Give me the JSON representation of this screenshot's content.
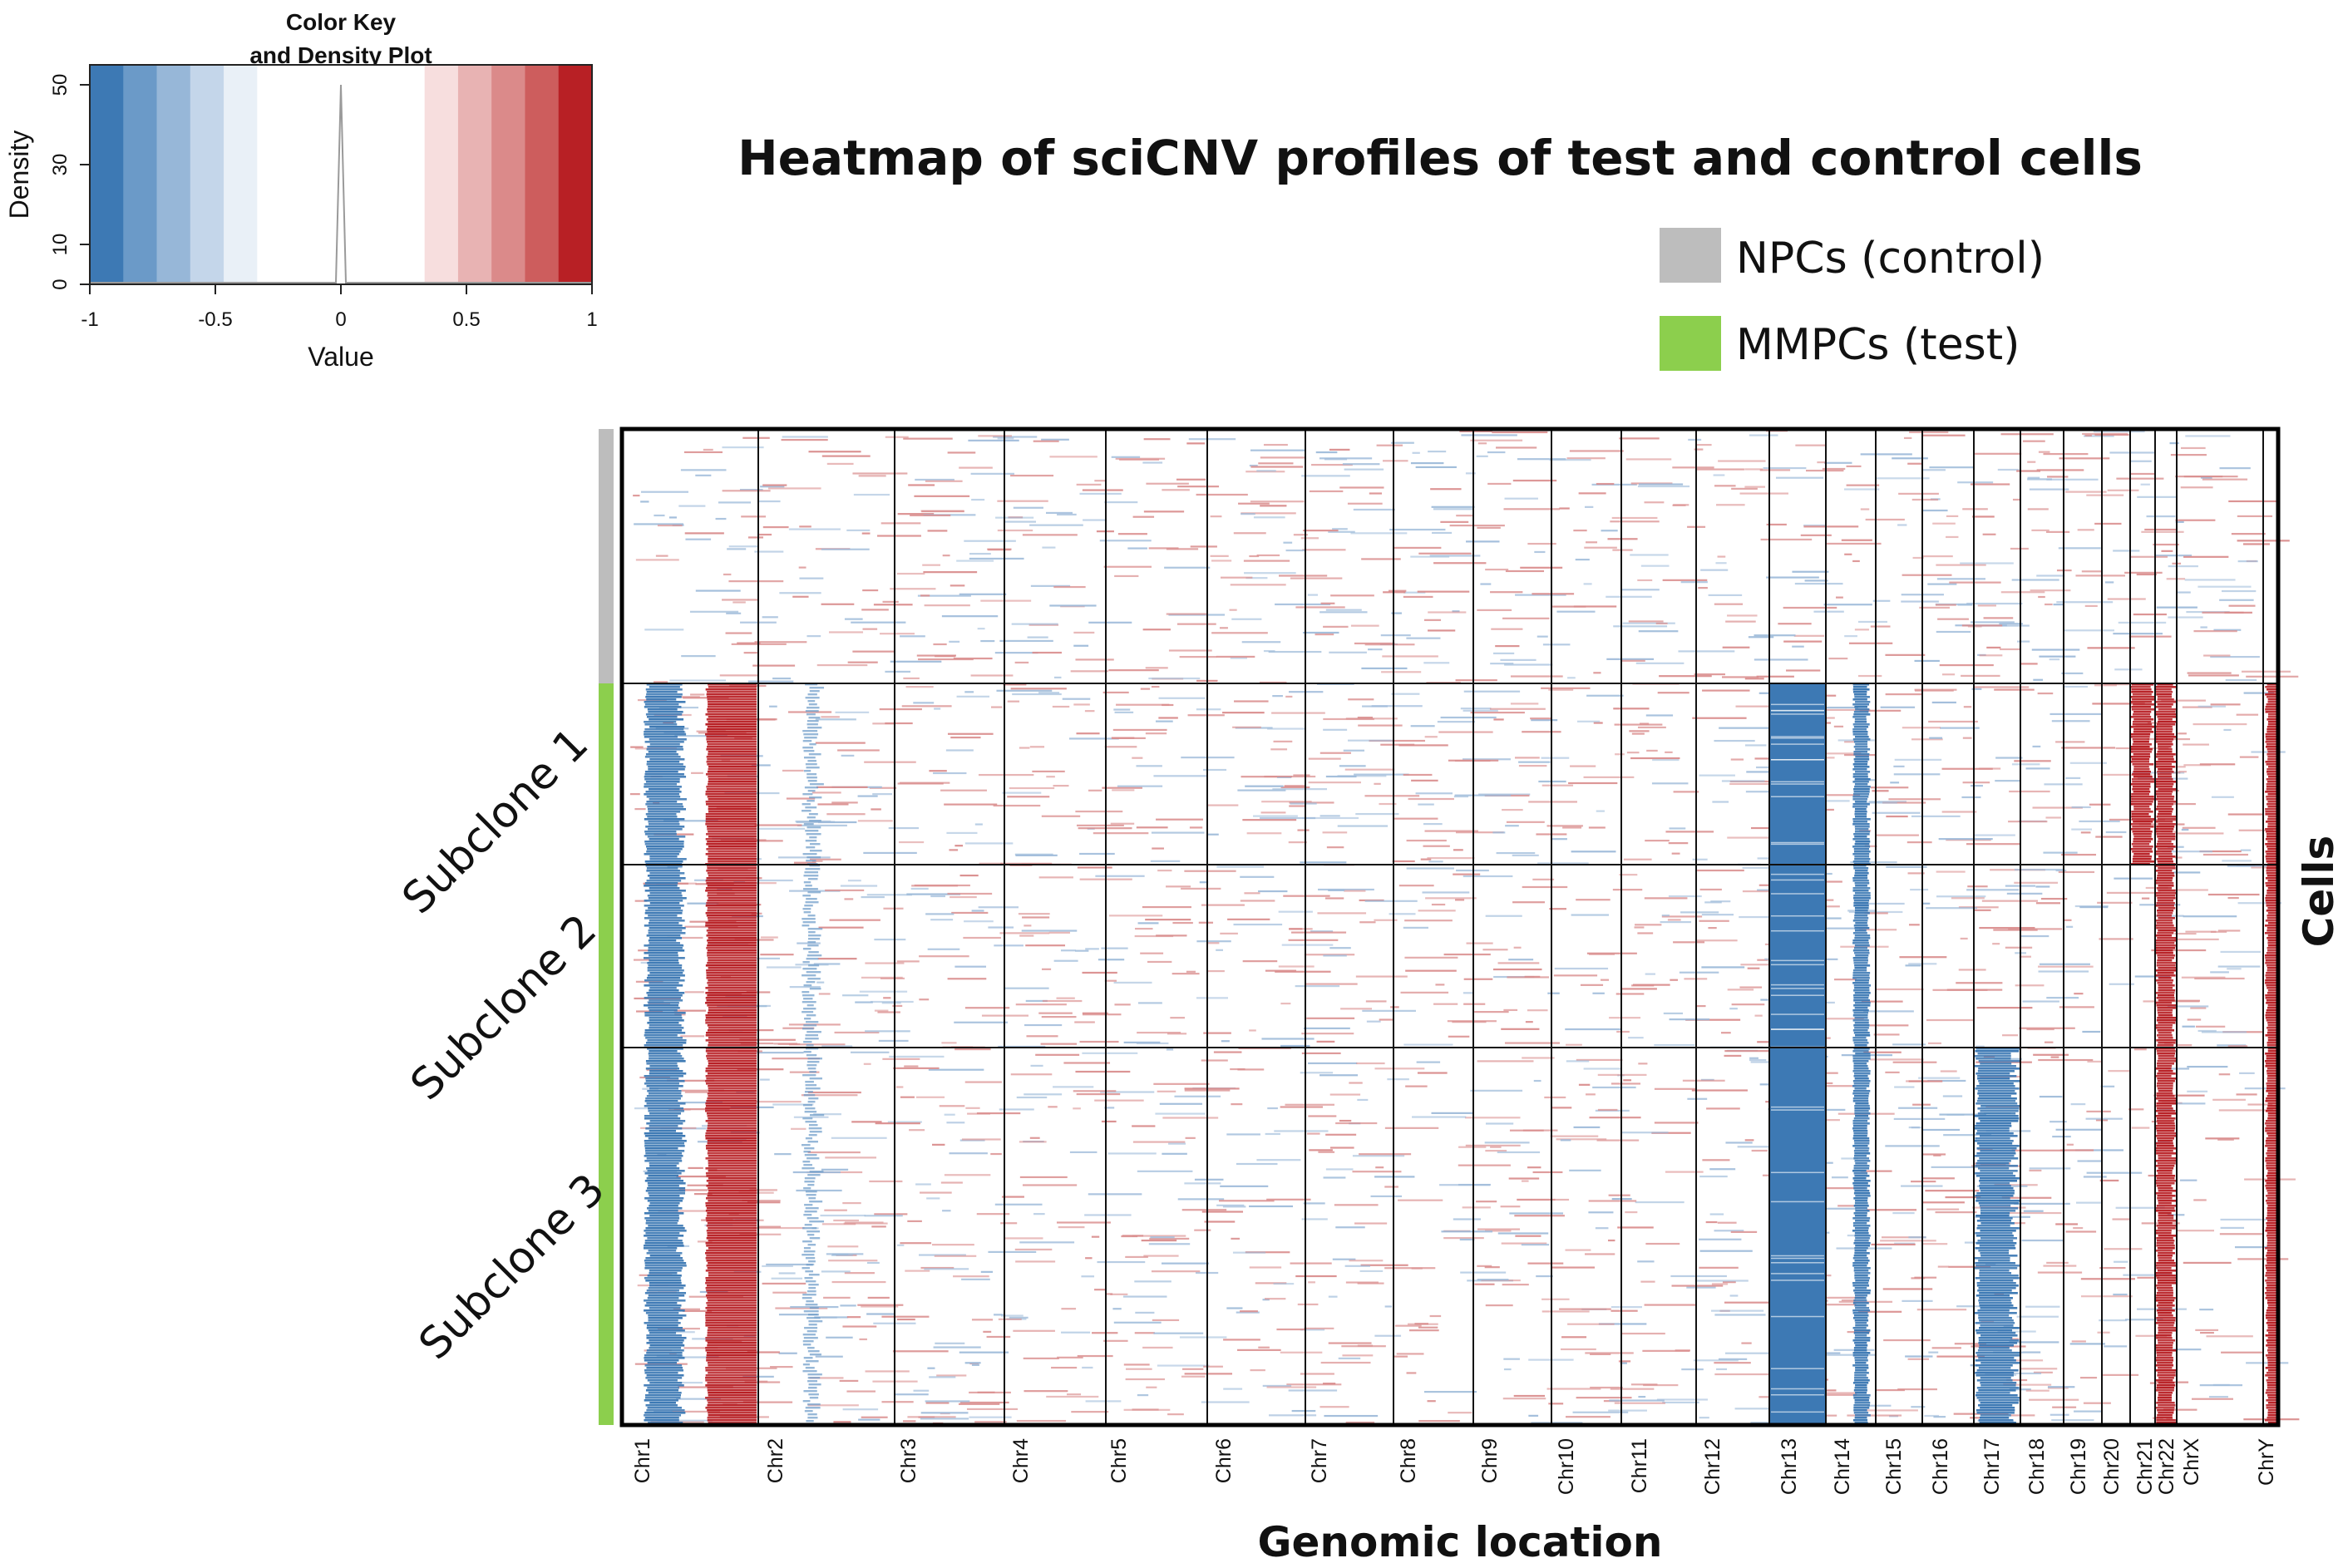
{
  "chart_data": {
    "type": "heatmap",
    "title": "Heatmap of sciCNV profiles of test and control cells",
    "xlabel": "Genomic location",
    "ylabel": "Cells",
    "color_key": {
      "title_line1": "Color Key",
      "title_line2": "and Density Plot",
      "xlabel": "Value",
      "ylabel": "Density",
      "x_ticks": [
        "-1",
        "-0.5",
        "0",
        "0.5",
        "1"
      ],
      "y_ticks": [
        "0",
        "10",
        "30",
        "50"
      ],
      "range": [
        -1,
        1
      ],
      "density_peak": {
        "value": 0,
        "density": 50
      },
      "colors": [
        "#3d79b4",
        "#6b9ac8",
        "#97b7d8",
        "#c4d6ea",
        "#e9f0f7",
        "#ffffff",
        "#ffffff",
        "#ffffff",
        "#ffffff",
        "#ffffff",
        "#f7dede",
        "#e8b3b3",
        "#db8a8a",
        "#cd5d5d",
        "#b82025"
      ]
    },
    "legend": [
      {
        "label": "NPCs (control)",
        "color": "#bdbdbd"
      },
      {
        "label": "MMPCs (test)",
        "color": "#8ccf4d"
      }
    ],
    "groups": [
      {
        "label": "",
        "type": "control",
        "color": "#bdbdbd"
      },
      {
        "label": "Subclone 1",
        "type": "test",
        "color": "#8ccf4d"
      },
      {
        "label": "Subclone 2",
        "type": "test",
        "color": "#8ccf4d"
      },
      {
        "label": "Subclone 3",
        "type": "test",
        "color": "#8ccf4d"
      }
    ],
    "chromosomes": [
      "Chr1",
      "Chr2",
      "Chr3",
      "Chr4",
      "Chr5",
      "Chr6",
      "Chr7",
      "Chr8",
      "Chr9",
      "Chr10",
      "Chr11",
      "Chr12",
      "Chr13",
      "Chr14",
      "Chr15",
      "Chr16",
      "Chr17",
      "Chr18",
      "Chr19",
      "Chr20",
      "Chr21",
      "Chr22",
      "ChrX",
      "ChrY"
    ],
    "cnv_blocks": [
      {
        "chromosome": "Chr1",
        "part": "p-arm",
        "groups": [
          "Subclone 1",
          "Subclone 2",
          "Subclone 3"
        ],
        "value": -1
      },
      {
        "chromosome": "Chr1",
        "part": "q-arm",
        "groups": [
          "Subclone 1",
          "Subclone 2",
          "Subclone 3"
        ],
        "value": 1
      },
      {
        "chromosome": "Chr13",
        "part": "whole",
        "groups": [
          "Subclone 1",
          "Subclone 2",
          "Subclone 3"
        ],
        "value": -1
      },
      {
        "chromosome": "Chr14",
        "part": "partial",
        "groups": [
          "Subclone 1",
          "Subclone 2",
          "Subclone 3"
        ],
        "value": -1
      },
      {
        "chromosome": "Chr17",
        "part": "whole",
        "groups": [
          "Subclone 3"
        ],
        "value": -1
      },
      {
        "chromosome": "Chr21",
        "part": "whole",
        "groups": [
          "Subclone 1"
        ],
        "value": 1
      },
      {
        "chromosome": "Chr22",
        "part": "whole",
        "groups": [
          "Subclone 1",
          "Subclone 2",
          "Subclone 3"
        ],
        "value": 1
      },
      {
        "chromosome": "ChrY",
        "part": "end",
        "groups": [
          "Subclone 1",
          "Subclone 2",
          "Subclone 3"
        ],
        "value": 1
      }
    ]
  }
}
